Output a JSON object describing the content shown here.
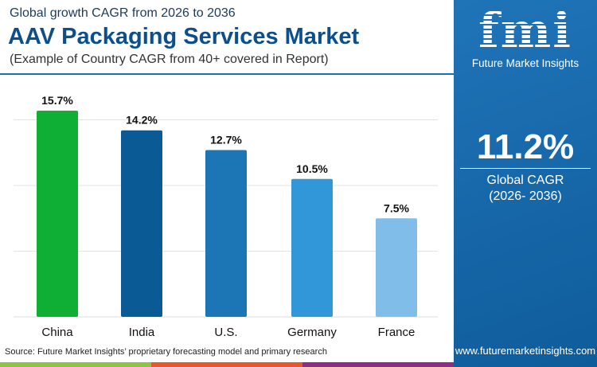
{
  "header": {
    "subtitle": "Global growth CAGR from 2026 to 2036",
    "title": "AAV Packaging Services Market",
    "note": "(Example of Country CAGR from 40+ covered in Report)"
  },
  "source": "Source: Future Market Insights’ proprietary forecasting model and primary research",
  "panel": {
    "logo_text": "fmi",
    "brand": "Future Market Insights",
    "cagr": "11.2%",
    "cagr_label": "Global CAGR",
    "period": "(2026- 2036)",
    "url": "www.futuremarketinsights.com"
  },
  "strip_colors": [
    "#8cc63f",
    "#e8572a",
    "#8e2c8a"
  ],
  "chart_data": {
    "type": "bar",
    "categories": [
      "China",
      "India",
      "U.S.",
      "Germany",
      "France"
    ],
    "values": [
      15.7,
      14.2,
      12.7,
      10.5,
      7.5
    ],
    "data_labels": [
      "15.7%",
      "14.2%",
      "12.7%",
      "10.5%",
      "7.5%"
    ],
    "colors": [
      "#0fae35",
      "#0a5a96",
      "#1c76b6",
      "#3197d8",
      "#80bde8"
    ],
    "ylim": [
      0,
      18
    ],
    "grid": true,
    "gridlines": [
      5,
      10,
      15
    ],
    "title": "",
    "xlabel": "",
    "ylabel": ""
  }
}
